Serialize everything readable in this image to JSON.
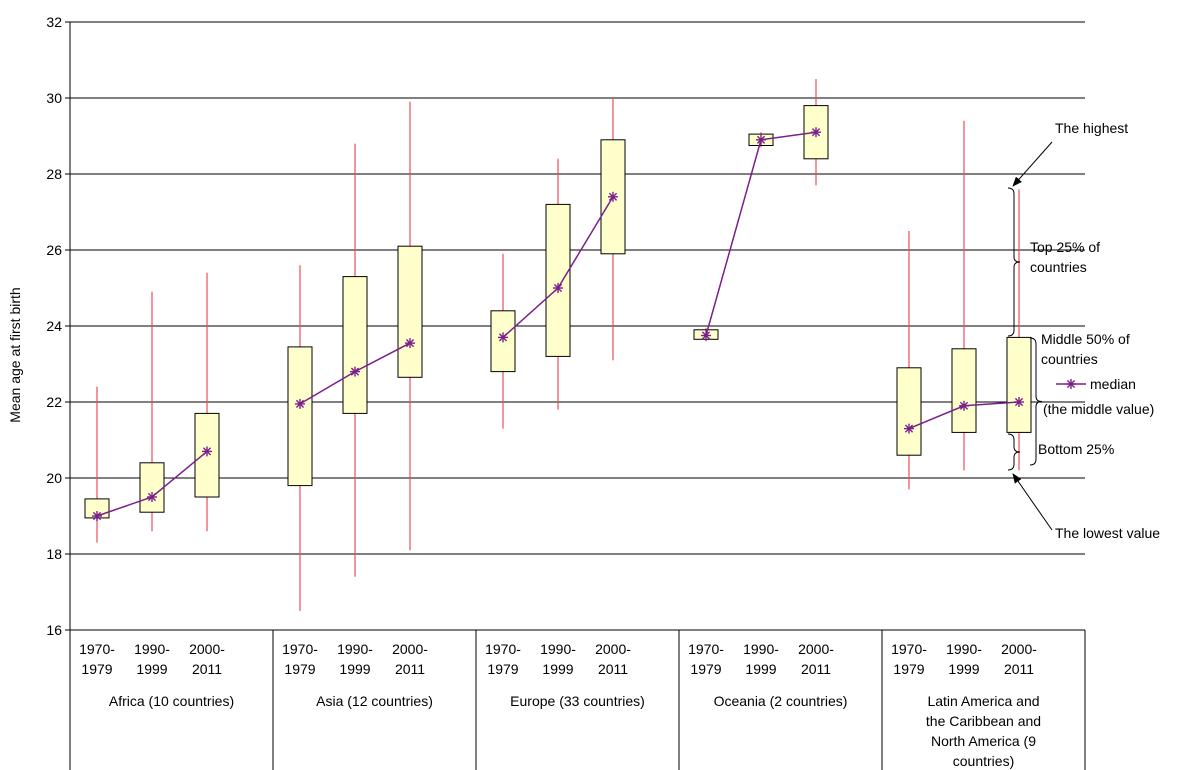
{
  "chart_data": {
    "type": "boxplot",
    "ylabel": "Mean age at first birth",
    "ylim": [
      16,
      32
    ],
    "yticks": [
      16,
      18,
      20,
      22,
      24,
      26,
      28,
      30,
      32
    ],
    "grid": true,
    "groups": [
      {
        "label_lines": [
          "Africa (10 countries)"
        ],
        "periods": [
          {
            "label_lines": [
              "1970-",
              "1979"
            ],
            "min": 18.3,
            "q1": 18.95,
            "median": 19.0,
            "q3": 19.45,
            "max": 22.4
          },
          {
            "label_lines": [
              "1990-",
              "1999"
            ],
            "min": 18.6,
            "q1": 19.1,
            "median": 19.5,
            "q3": 20.4,
            "max": 24.9
          },
          {
            "label_lines": [
              "2000-",
              "2011"
            ],
            "min": 18.6,
            "q1": 19.5,
            "median": 20.7,
            "q3": 21.7,
            "max": 25.4
          }
        ]
      },
      {
        "label_lines": [
          "Asia (12 countries)"
        ],
        "periods": [
          {
            "label_lines": [
              "1970-",
              "1979"
            ],
            "min": 16.5,
            "q1": 19.8,
            "median": 21.95,
            "q3": 23.45,
            "max": 25.6
          },
          {
            "label_lines": [
              "1990-",
              "1999"
            ],
            "min": 17.4,
            "q1": 21.7,
            "median": 22.8,
            "q3": 25.3,
            "max": 28.8
          },
          {
            "label_lines": [
              "2000-",
              "2011"
            ],
            "min": 18.1,
            "q1": 22.65,
            "median": 23.55,
            "q3": 26.1,
            "max": 29.9
          }
        ]
      },
      {
        "label_lines": [
          "Europe (33 countries)"
        ],
        "periods": [
          {
            "label_lines": [
              "1970-",
              "1979"
            ],
            "min": 21.3,
            "q1": 22.8,
            "median": 23.7,
            "q3": 24.4,
            "max": 25.9
          },
          {
            "label_lines": [
              "1990-",
              "1999"
            ],
            "min": 21.8,
            "q1": 23.2,
            "median": 25.0,
            "q3": 27.2,
            "max": 28.4
          },
          {
            "label_lines": [
              "2000-",
              "2011"
            ],
            "min": 23.1,
            "q1": 25.9,
            "median": 27.4,
            "q3": 28.9,
            "max": 30.0
          }
        ]
      },
      {
        "label_lines": [
          "Oceania (2 countries)"
        ],
        "periods": [
          {
            "label_lines": [
              "1970-",
              "1979"
            ],
            "min": 23.6,
            "q1": 23.65,
            "median": 23.75,
            "q3": 23.9,
            "max": 23.95
          },
          {
            "label_lines": [
              "1990-",
              "1999"
            ],
            "min": 28.7,
            "q1": 28.75,
            "median": 28.9,
            "q3": 29.05,
            "max": 29.1
          },
          {
            "label_lines": [
              "2000-",
              "2011"
            ],
            "min": 27.7,
            "q1": 28.4,
            "median": 29.1,
            "q3": 29.8,
            "max": 30.5
          }
        ]
      },
      {
        "label_lines": [
          "Latin America and",
          "the Caribbean and",
          "North America (9",
          "countries)"
        ],
        "periods": [
          {
            "label_lines": [
              "1970-",
              "1979"
            ],
            "min": 19.7,
            "q1": 20.6,
            "median": 21.3,
            "q3": 22.9,
            "max": 26.5
          },
          {
            "label_lines": [
              "1990-",
              "1999"
            ],
            "min": 20.2,
            "q1": 21.2,
            "median": 21.9,
            "q3": 23.4,
            "max": 29.4
          },
          {
            "label_lines": [
              "2000-",
              "2011"
            ],
            "min": 20.2,
            "q1": 21.2,
            "median": 22.0,
            "q3": 23.7,
            "max": 27.6
          }
        ]
      }
    ],
    "legend": {
      "highest": "The highest",
      "top25": [
        "Top 25% of",
        "countries"
      ],
      "middle50": [
        "Middle 50% of",
        "countries"
      ],
      "median": "median",
      "median_note": "(the middle value)",
      "bottom25": "Bottom 25%",
      "lowest": "The lowest value"
    },
    "colors": {
      "box_fill": "#FFFFCC",
      "whisker": "#E8505B",
      "median": "#7B1F8C",
      "grid": "#000000"
    }
  }
}
